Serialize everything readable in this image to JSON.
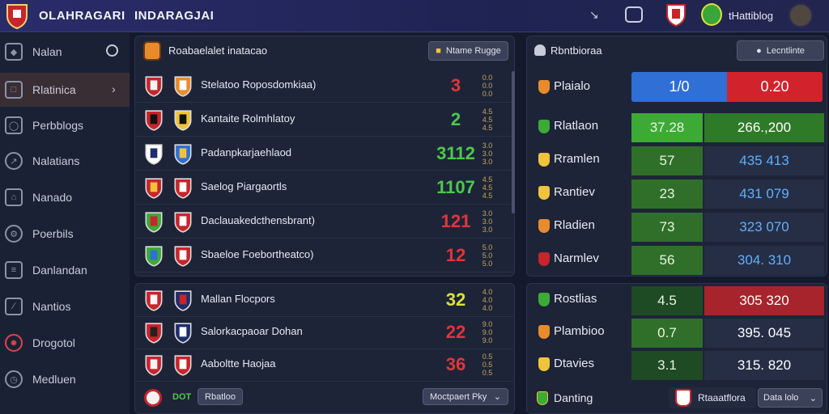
{
  "topbar": {
    "app_title": "OLAHRAGARI",
    "section_title": "INDARAGJAI",
    "user_label": "tHattiblog"
  },
  "sidebar": {
    "items": [
      {
        "label": "Nalan",
        "icon": "gem-icon"
      },
      {
        "label": "Rlatinica",
        "icon": "folder-icon",
        "active": true
      },
      {
        "label": "Perbblogs",
        "icon": "shield-icon"
      },
      {
        "label": "Nalatians",
        "icon": "compass-icon"
      },
      {
        "label": "Nanado",
        "icon": "bank-icon"
      },
      {
        "label": "Poerbils",
        "icon": "gear-icon"
      },
      {
        "label": "Danlandan",
        "icon": "ticket-icon"
      },
      {
        "label": "Nantios",
        "icon": "wrench-icon"
      },
      {
        "label": "Drogotol",
        "icon": "bug-icon"
      },
      {
        "label": "Medluen",
        "icon": "clock-icon"
      }
    ]
  },
  "fixtures": {
    "title": "Roabaelalet inatacao",
    "filter_button": "Ntame Rugge",
    "rows": [
      {
        "label": "Stelatoo Roposdomkiaa)",
        "score": "3",
        "score_color": "#e0363a",
        "odds": [
          "0.0",
          "0.0",
          "0.0"
        ]
      },
      {
        "label": "Kantaite Rolmhlatoy",
        "score": "2",
        "score_color": "#4cc94a",
        "odds": [
          "4.5",
          "4.5",
          "4.5"
        ]
      },
      {
        "label": "Padanpkarjaehlaod",
        "score": "3112",
        "score_color": "#4cc94a",
        "odds": [
          "3.0",
          "3.0",
          "3.0"
        ]
      },
      {
        "label": "Saelog Piargaortls",
        "score": "1107",
        "score_color": "#4cc94a",
        "odds": [
          "4.5",
          "4.5",
          "4.5"
        ]
      },
      {
        "label": "Daclauakedcthensbrant)",
        "score": "121",
        "score_color": "#e0363a",
        "odds": [
          "3.0",
          "3.0",
          "3.0"
        ]
      },
      {
        "label": "Sbaeloe Foebortheatco)",
        "score": "12",
        "score_color": "#e0363a",
        "odds": [
          "5.0",
          "5.0",
          "5.0"
        ]
      }
    ]
  },
  "results": {
    "rows": [
      {
        "label": "Mallan Flocpors",
        "score": "32",
        "score_color": "#d9e23a",
        "odds": [
          "4.0",
          "4.0",
          "4.0"
        ]
      },
      {
        "label": "Salorkacpaoar Dohan",
        "score": "22",
        "score_color": "#e0363a",
        "odds": [
          "9.0",
          "9.0",
          "9.0"
        ]
      },
      {
        "label": "Aaboltte Haojaa",
        "score": "36",
        "score_color": "#e0363a",
        "odds": [
          "0.5",
          "0.5",
          "0.5"
        ]
      }
    ],
    "footer_tag": "DOT",
    "footer_button": "Rbatloo",
    "footer_select": "Moctpaert Pky"
  },
  "standings": {
    "title": "Rbntbioraa",
    "header_button": "Lecntlinte",
    "head_row": {
      "label": "Plaialo",
      "blue_value": "1/0",
      "red_value": "0.20"
    },
    "rows": [
      {
        "label": "Rlatlaon",
        "a": "37.28",
        "b": "266.,200",
        "a_color": "#3daa36",
        "b_color": "#2f7a29",
        "b_text_color": "#ffffff"
      },
      {
        "label": "Rramlen",
        "a": "57",
        "b": "435  413",
        "a_color": "#2f6f2a",
        "b_color": "#262e45",
        "b_text_color": "#5db0ff"
      },
      {
        "label": "Rantiev",
        "a": "23",
        "b": "431  079",
        "a_color": "#2f6f2a",
        "b_color": "#262e45",
        "b_text_color": "#5db0ff"
      },
      {
        "label": "Rladien",
        "a": "73",
        "b": "323  070",
        "a_color": "#2f6f2a",
        "b_color": "#262e45",
        "b_text_color": "#5db0ff"
      },
      {
        "label": "Narmlev",
        "a": "56",
        "b": "304.  310",
        "a_color": "#2f6f2a",
        "b_color": "#262e45",
        "b_text_color": "#5db0ff"
      }
    ],
    "rows2": [
      {
        "label": "Rostlias",
        "a": "4.5",
        "b": "305  320",
        "a_color": "#1e4a24",
        "b_color": "#a8242c",
        "b_text_color": "#ffffff"
      },
      {
        "label": "Plambioo",
        "a": "0.7",
        "b": "395.  045",
        "a_color": "#2f6f2a",
        "b_color": "#262e45",
        "b_text_color": "#ffffff"
      },
      {
        "label": "Dtavies",
        "a": "3.1",
        "b": "315.  820",
        "a_color": "#1e4a24",
        "b_color": "#262e45",
        "b_text_color": "#ffffff"
      }
    ],
    "footer_label": "Danting",
    "footer_team": "Rtaaatflora",
    "footer_select": "Data lolo"
  }
}
